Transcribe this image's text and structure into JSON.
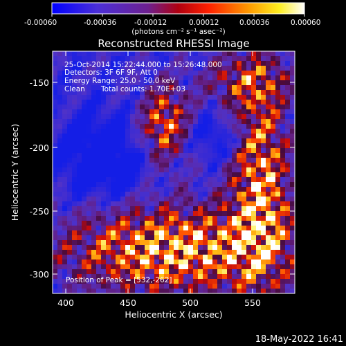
{
  "colorbar": {
    "ticks": [
      "-0.00060",
      "-0.00036",
      "-0.00012",
      "0.00012",
      "0.00036",
      "0.00060"
    ],
    "unit_label": "(photons cm⁻² s⁻¹ asec⁻²)",
    "colors": [
      "#0000ff",
      "#5a2bd0",
      "#7b1a7b",
      "#ff0000",
      "#ff8c00",
      "#ffff00",
      "#ffffff"
    ]
  },
  "title": "Reconstructed RHESSI Image",
  "info": {
    "line1": "25-Oct-2014 15:22:44.000 to 15:26:48.000",
    "line2": "Detectors: 3F 6F 9F, Att 0",
    "line3": "Energy Range: 25.0 - 50.0 keV",
    "line4_a": "Clean",
    "line4_b": "Total counts: 1.70E+03",
    "peak": "Position of Peak = [532,-262]"
  },
  "axes": {
    "xlabel": "Heliocentric X (arcsec)",
    "ylabel": "Heliocentric Y (arcsec)",
    "xticks": [
      "400",
      "450",
      "500",
      "550"
    ],
    "yticks": [
      "-150",
      "-200",
      "-250",
      "-300"
    ]
  },
  "footer": {
    "timestamp": "18-May-2022 16:41"
  }
}
